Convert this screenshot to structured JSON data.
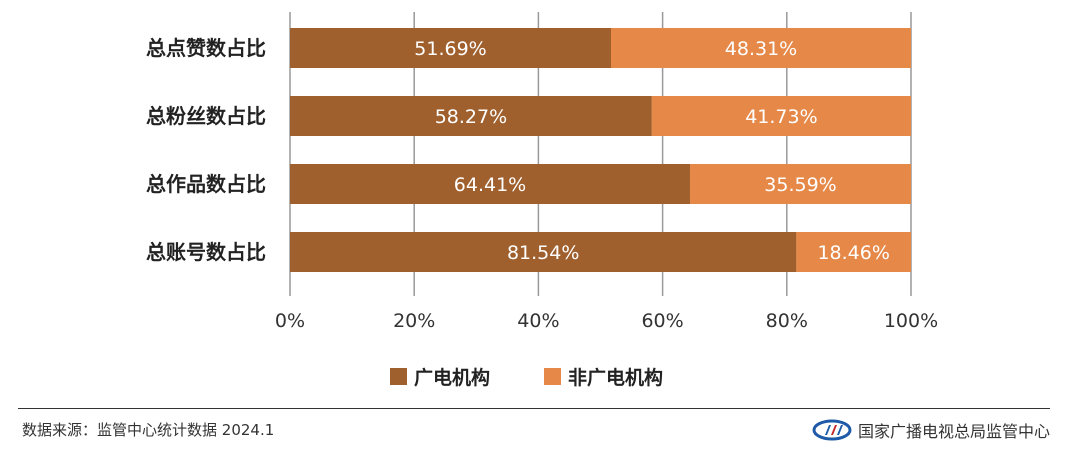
{
  "chart_data": {
    "type": "bar",
    "orientation": "horizontal",
    "stacked": true,
    "categories": [
      "总点赞数占比",
      "总粉丝数占比",
      "总作品数占比",
      "总账号数占比"
    ],
    "series": [
      {
        "name": "广电机构",
        "color": "#a0602e",
        "values": [
          51.69,
          58.27,
          64.41,
          81.54
        ],
        "labels": [
          "51.69%",
          "58.27%",
          "64.41%",
          "81.54%"
        ]
      },
      {
        "name": "非广电机构",
        "color": "#e58848",
        "values": [
          48.31,
          41.73,
          35.59,
          18.46
        ],
        "labels": [
          "48.31%",
          "41.73%",
          "35.59%",
          "18.46%"
        ]
      }
    ],
    "xlim": [
      0,
      100
    ],
    "xticks": [
      0,
      20,
      40,
      60,
      80,
      100
    ],
    "xtick_labels": [
      "0%",
      "20%",
      "40%",
      "60%",
      "80%",
      "100%"
    ],
    "grid": "vertical",
    "legend": "bottom-center",
    "label_color": "#ffffff",
    "grid_color": "#999999"
  },
  "footer": {
    "source": "数据来源：监管中心统计数据 2024.1",
    "org": "国家广播电视总局监管中心",
    "logo_colors": [
      "#1f5aa8",
      "#c62828"
    ]
  }
}
